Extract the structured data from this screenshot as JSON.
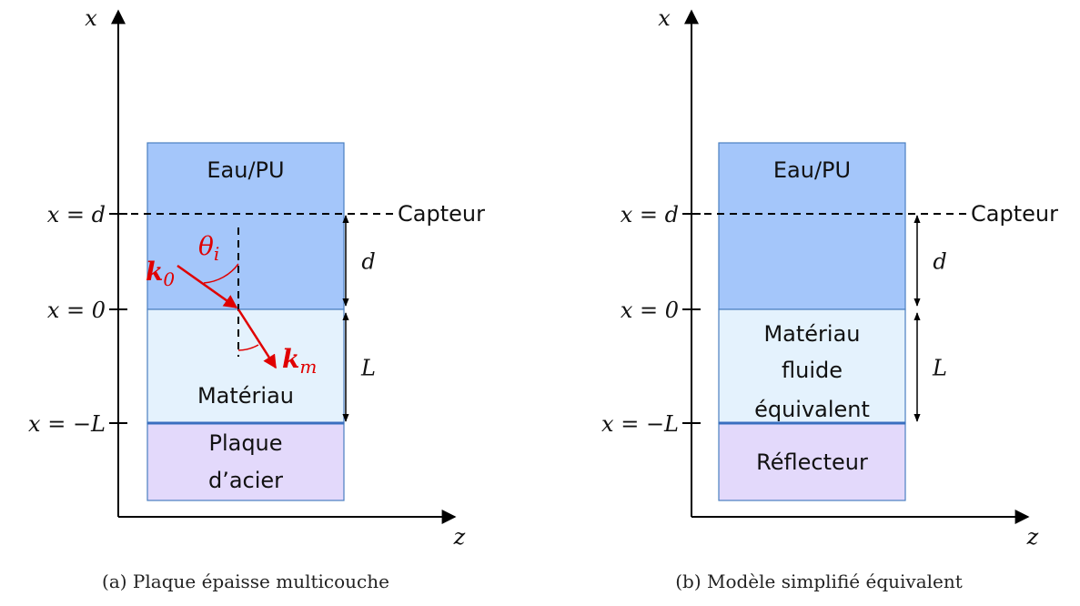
{
  "panels": [
    {
      "axis_x": "x",
      "axis_z": "z",
      "ticks": [
        "x = d",
        "x = 0",
        "x = −L"
      ],
      "sensor": "Capteur",
      "dims": [
        "d",
        "L"
      ],
      "layers": [
        [
          "Eau/PU"
        ],
        [
          "Matériau"
        ],
        [
          "Plaque",
          "d’acier"
        ]
      ],
      "vectors": [
        {
          "symbol": "k",
          "sub": "0"
        },
        {
          "symbol": "k",
          "sub": "m"
        }
      ],
      "angle": {
        "symbol": "θ",
        "sub": "i"
      },
      "caption": "(a) Plaque épaisse multicouche"
    },
    {
      "axis_x": "x",
      "axis_z": "z",
      "ticks": [
        "x = d",
        "x = 0",
        "x = −L"
      ],
      "sensor": "Capteur",
      "dims": [
        "d",
        "L"
      ],
      "layers": [
        [
          "Eau/PU"
        ],
        [
          "Matériau",
          "fluide",
          "équivalent"
        ],
        [
          "Réflecteur"
        ]
      ],
      "caption": "(b) Modèle simplifié équivalent"
    }
  ]
}
